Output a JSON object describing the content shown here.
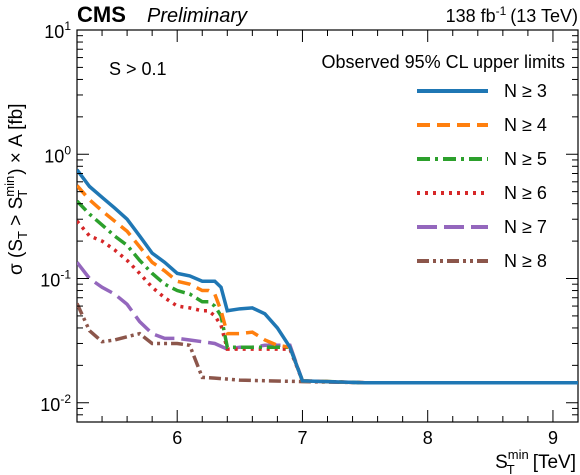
{
  "header": {
    "experiment": "CMS",
    "status": "Preliminary",
    "lumi_value": "138 fb",
    "lumi_exp": "-1",
    "energy": "(13 TeV)"
  },
  "chart_data": {
    "type": "line",
    "xlabel_main": "S",
    "xlabel_sub": "T",
    "xlabel_sup": "min",
    "xlabel_unit": "[TeV]",
    "ylabel": "σ (S_T > S_T^min) × A [fb]",
    "ylabel_parts": {
      "pre": "σ (S",
      "sub1": "T",
      "mid": " > S",
      "sub2": "T",
      "sup2": "min",
      "post": ") × A [fb]"
    },
    "xlim": [
      5.2,
      9.2
    ],
    "ylim": [
      0.007,
      10
    ],
    "yscale": "log",
    "xticks": [
      "6",
      "7",
      "8",
      "9"
    ],
    "xtick_values": [
      6,
      7,
      8,
      9
    ],
    "yticks": [
      {
        "value": 10,
        "base": "10",
        "exp": "1"
      },
      {
        "value": 1,
        "base": "10",
        "exp": "0"
      },
      {
        "value": 0.1,
        "base": "10",
        "exp": "-1"
      },
      {
        "value": 0.01,
        "base": "10",
        "exp": "-2"
      }
    ],
    "grid": false,
    "legend_title": "Observed 95% CL upper limits",
    "legend_position": "top-right",
    "annotation": "S > 0.1",
    "series": [
      {
        "name": "N ≥ 3",
        "color": "#1f77b4",
        "dash": "solid",
        "x": [
          5.2,
          5.3,
          5.4,
          5.5,
          5.6,
          5.7,
          5.8,
          5.9,
          6.0,
          6.1,
          6.2,
          6.25,
          6.3,
          6.35,
          6.4,
          6.5,
          6.6,
          6.7,
          6.8,
          6.9,
          7.0,
          7.5,
          8.0,
          8.5,
          9.0,
          9.2
        ],
        "y": [
          0.75,
          0.55,
          0.45,
          0.37,
          0.3,
          0.22,
          0.16,
          0.135,
          0.11,
          0.105,
          0.095,
          0.095,
          0.095,
          0.085,
          0.055,
          0.057,
          0.058,
          0.052,
          0.04,
          0.028,
          0.015,
          0.0145,
          0.0145,
          0.0145,
          0.0145,
          0.0145
        ]
      },
      {
        "name": "N ≥ 4",
        "color": "#ff7f0e",
        "dash": "dashed",
        "x": [
          5.2,
          5.3,
          5.4,
          5.5,
          5.6,
          5.7,
          5.8,
          5.9,
          6.0,
          6.1,
          6.2,
          6.25,
          6.3,
          6.35,
          6.4,
          6.5,
          6.6,
          6.7,
          6.8,
          6.9,
          7.0,
          7.5,
          8.0,
          8.5,
          9.0,
          9.2
        ],
        "y": [
          0.56,
          0.43,
          0.35,
          0.29,
          0.24,
          0.18,
          0.135,
          0.115,
          0.095,
          0.09,
          0.08,
          0.08,
          0.075,
          0.055,
          0.036,
          0.036,
          0.037,
          0.032,
          0.029,
          0.028,
          0.015,
          0.0145,
          0.0145,
          0.0145,
          0.0145,
          0.0145
        ]
      },
      {
        "name": "N ≥ 5",
        "color": "#2ca02c",
        "dash": "dashdot",
        "x": [
          5.2,
          5.3,
          5.4,
          5.5,
          5.6,
          5.7,
          5.8,
          5.9,
          6.0,
          6.1,
          6.2,
          6.25,
          6.3,
          6.35,
          6.4,
          6.5,
          6.6,
          6.7,
          6.8,
          6.9,
          7.0,
          7.5,
          8.0,
          8.5,
          9.0,
          9.2
        ],
        "y": [
          0.42,
          0.33,
          0.27,
          0.22,
          0.185,
          0.14,
          0.11,
          0.09,
          0.08,
          0.075,
          0.065,
          0.065,
          0.06,
          0.05,
          0.028,
          0.028,
          0.028,
          0.028,
          0.028,
          0.028,
          0.015,
          0.0145,
          0.0145,
          0.0145,
          0.0145,
          0.0145
        ]
      },
      {
        "name": "N ≥ 6",
        "color": "#d62728",
        "dash": "dotted",
        "x": [
          5.2,
          5.3,
          5.4,
          5.5,
          5.6,
          5.7,
          5.8,
          5.9,
          6.0,
          6.1,
          6.2,
          6.25,
          6.3,
          6.35,
          6.4,
          6.5,
          6.6,
          6.7,
          6.8,
          6.9,
          7.0,
          7.5,
          8.0,
          8.5,
          9.0,
          9.2
        ],
        "y": [
          0.29,
          0.22,
          0.2,
          0.17,
          0.14,
          0.11,
          0.085,
          0.07,
          0.06,
          0.058,
          0.055,
          0.055,
          0.05,
          0.042,
          0.027,
          0.027,
          0.027,
          0.027,
          0.027,
          0.027,
          0.015,
          0.0145,
          0.0145,
          0.0145,
          0.0145,
          0.0145
        ]
      },
      {
        "name": "N ≥ 7",
        "color": "#9467bd",
        "dash": "longdash",
        "x": [
          5.2,
          5.3,
          5.4,
          5.5,
          5.6,
          5.7,
          5.8,
          5.9,
          6.0,
          6.1,
          6.2,
          6.3,
          6.4,
          6.5,
          6.6,
          6.7,
          6.8,
          6.9,
          7.0,
          7.5,
          8.0,
          8.5,
          9.0,
          9.2
        ],
        "y": [
          0.135,
          0.1,
          0.085,
          0.075,
          0.062,
          0.045,
          0.036,
          0.033,
          0.033,
          0.032,
          0.031,
          0.03,
          0.027,
          0.028,
          0.028,
          0.029,
          0.029,
          0.029,
          0.015,
          0.0145,
          0.0145,
          0.0145,
          0.0145,
          0.0145
        ]
      },
      {
        "name": "N ≥ 8",
        "color": "#8c564b",
        "dash": "dashdotdot",
        "x": [
          5.2,
          5.3,
          5.4,
          5.5,
          5.6,
          5.7,
          5.8,
          5.9,
          6.0,
          6.1,
          6.2,
          6.3,
          6.5,
          7.0,
          7.5,
          8.0,
          8.5,
          9.0,
          9.2
        ],
        "y": [
          0.063,
          0.038,
          0.031,
          0.032,
          0.034,
          0.036,
          0.03,
          0.03,
          0.03,
          0.029,
          0.016,
          0.0158,
          0.0152,
          0.0148,
          0.0145,
          0.0145,
          0.0145,
          0.0145,
          0.0145
        ]
      }
    ]
  }
}
